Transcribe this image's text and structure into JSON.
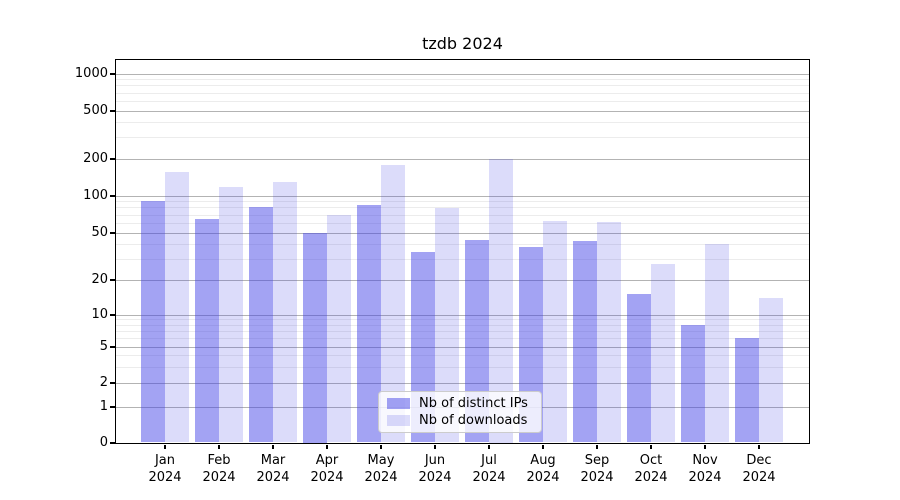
{
  "title": "tzdb 2024",
  "chart_data": {
    "type": "bar",
    "title": "tzdb 2024",
    "categories": [
      "Jan",
      "Feb",
      "Mar",
      "Apr",
      "May",
      "Jun",
      "Jul",
      "Aug",
      "Sep",
      "Oct",
      "Nov",
      "Dec"
    ],
    "category_year": "2024",
    "series": [
      {
        "name": "Nb of distinct IPs",
        "color": "rgba(60,60,230,0.47)",
        "values": [
          90,
          64,
          80,
          50,
          83,
          34,
          43,
          38,
          42,
          15,
          8,
          6
        ]
      },
      {
        "name": "Nb of downloads",
        "color": "rgba(60,60,230,0.18)",
        "values": [
          155,
          118,
          128,
          70,
          177,
          79,
          200,
          62,
          61,
          27,
          40,
          14
        ]
      }
    ],
    "yscale": "log-like (0,1 then log decades)",
    "y_ticks": [
      0,
      1,
      2,
      5,
      10,
      20,
      50,
      100,
      200,
      500,
      1000
    ],
    "y_minor_ticks": [
      3,
      4,
      6,
      7,
      8,
      9,
      30,
      40,
      60,
      70,
      80,
      90,
      300,
      400,
      600,
      700,
      800,
      900
    ],
    "ylim": [
      0,
      1300
    ],
    "grid": true,
    "legend_position": "lower-center"
  }
}
